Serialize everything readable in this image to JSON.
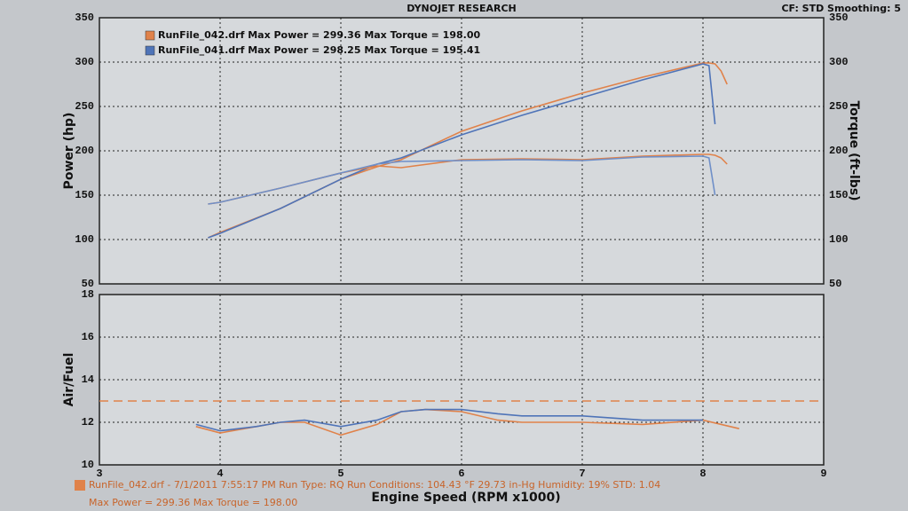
{
  "chart_data": [
    {
      "type": "line",
      "title": "DYNOJET RESEARCH",
      "annotation": "CF: STD  Smoothing: 5",
      "ylabel": "Power (hp)",
      "y2label": "Torque (ft-lbs)",
      "xlim": [
        3,
        9
      ],
      "xticks": [
        3,
        4,
        5,
        6,
        7,
        8,
        9
      ],
      "ylim": [
        50,
        350
      ],
      "yticks": [
        50,
        100,
        150,
        200,
        250,
        300,
        350
      ],
      "y2lim": [
        50,
        350
      ],
      "y2ticks": [
        50,
        100,
        150,
        200,
        250,
        300,
        350
      ],
      "grid": true,
      "x": [
        3.9,
        4,
        4.5,
        5,
        5.3,
        5.5,
        6,
        6.5,
        7,
        7.5,
        8,
        8.05,
        8.1,
        8.15,
        8.2
      ],
      "series": [
        {
          "name": "RunFile_042.drf Max Power = 299.36   Max Torque = 198.00",
          "color": "#e0824a",
          "values": [
            102,
            108,
            135,
            168,
            182,
            190,
            222,
            245,
            265,
            283,
            299,
            299,
            298,
            290,
            275
          ]
        },
        {
          "name": "RunFile_041.drf Max Power = 298.25   Max Torque = 195.41",
          "color": "#4f74b8",
          "values": [
            102,
            107,
            135,
            168,
            185,
            192,
            218,
            240,
            260,
            280,
            298,
            296,
            230,
            null,
            null
          ]
        },
        {
          "axis": "y2",
          "color": "#e0824a",
          "values": [
            140,
            142,
            158,
            175,
            183,
            181,
            190,
            191,
            190,
            194,
            196,
            196,
            195,
            192,
            185
          ]
        },
        {
          "axis": "y2",
          "color": "#6f8fc8",
          "values": [
            140,
            142,
            158,
            175,
            185,
            188,
            189,
            190,
            189,
            193,
            194,
            192,
            150,
            null,
            null
          ]
        }
      ]
    },
    {
      "type": "line",
      "ylabel": "Air/Fuel",
      "xlabel": "Engine Speed (RPM x1000)",
      "xlim": [
        3,
        9
      ],
      "xticks": [
        3,
        4,
        5,
        6,
        7,
        8,
        9
      ],
      "ylim": [
        10,
        18
      ],
      "yticks": [
        10,
        12,
        14,
        16,
        18
      ],
      "grid": true,
      "reference_line": 13,
      "reference_color": "#e0824a",
      "x": [
        3.8,
        4,
        4.3,
        4.5,
        4.7,
        5,
        5.3,
        5.5,
        5.7,
        6,
        6.3,
        6.5,
        7,
        7.5,
        8,
        8.3
      ],
      "series": [
        {
          "color": "#e0824a",
          "values": [
            11.8,
            11.5,
            11.8,
            12.0,
            12.0,
            11.4,
            11.9,
            12.5,
            12.6,
            12.5,
            12.1,
            12.0,
            12.0,
            11.9,
            12.1,
            11.7
          ]
        },
        {
          "color": "#4f74b8",
          "values": [
            11.9,
            11.6,
            11.8,
            12.0,
            12.1,
            11.8,
            12.1,
            12.5,
            12.6,
            12.6,
            12.4,
            12.3,
            12.3,
            12.1,
            12.1,
            null
          ]
        }
      ]
    }
  ],
  "footer": {
    "line1": "RunFile_042.drf - 7/1/2011 7:55:17 PM  Run Type: RQ  Run Conditions: 104.43 °F  29.73 in-Hg  Humidity: 19%  STD: 1.04",
    "line2": "Max Power = 299.36  Max Torque = 198.00"
  }
}
